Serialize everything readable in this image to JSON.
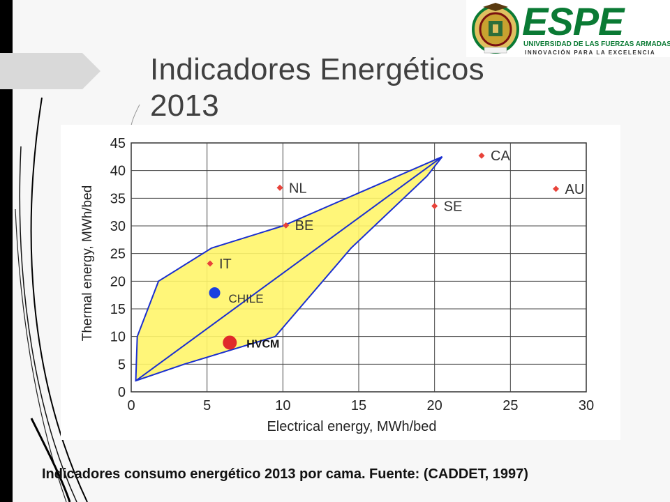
{
  "slide": {
    "title_line1": "Indicadores Energéticos",
    "title_line2": "2013",
    "caption": "Indicadores consumo energético 2013 por cama. Fuente: (CADDET, 1997)"
  },
  "logo": {
    "name": "ESPE",
    "subtitle": "UNIVERSIDAD DE LAS FUERZAS ARMADAS",
    "tagline": "INNOVACIÓN PARA LA EXCELENCIA",
    "brand_color": "#0a7a34"
  },
  "chart_data": {
    "type": "scatter",
    "xlabel": "Electrical energy, MWh/bed",
    "ylabel": "Thermal energy, MWh/bed",
    "xlim": [
      0,
      30
    ],
    "ylim": [
      0,
      45
    ],
    "xticks": [
      0,
      5,
      10,
      15,
      20,
      25,
      30
    ],
    "yticks": [
      0,
      5,
      10,
      15,
      20,
      25,
      30,
      35,
      40,
      45
    ],
    "grid": true,
    "points": [
      {
        "label": "CA",
        "x": 23.1,
        "y": 42.7,
        "color": "#e8433a",
        "marker": "diamond"
      },
      {
        "label": "AU",
        "x": 28.0,
        "y": 36.7,
        "color": "#e8433a",
        "marker": "diamond"
      },
      {
        "label": "NL",
        "x": 9.8,
        "y": 36.9,
        "color": "#e8433a",
        "marker": "diamond"
      },
      {
        "label": "SE",
        "x": 20.0,
        "y": 33.6,
        "color": "#e8433a",
        "marker": "diamond"
      },
      {
        "label": "BE",
        "x": 10.2,
        "y": 30.1,
        "color": "#e8433a",
        "marker": "diamond"
      },
      {
        "label": "IT",
        "x": 5.2,
        "y": 23.2,
        "color": "#e8433a",
        "marker": "diamond"
      },
      {
        "label": "CHILE",
        "x": 5.5,
        "y": 17.9,
        "color": "#1a3fe0",
        "marker": "circle"
      },
      {
        "label": "HVCM",
        "x": 6.5,
        "y": 8.9,
        "color": "#e02a2a",
        "marker": "big-circle"
      }
    ],
    "region": {
      "fill": "#fff56a",
      "stroke": "#1a2fd0",
      "boundary": [
        [
          0.3,
          2
        ],
        [
          0.4,
          10
        ],
        [
          1.8,
          20
        ],
        [
          5.3,
          26
        ],
        [
          10,
          30
        ],
        [
          20.5,
          42.5
        ],
        [
          19.5,
          39
        ],
        [
          14.5,
          26
        ],
        [
          9.5,
          10
        ],
        [
          3.5,
          5
        ],
        [
          0.3,
          2
        ]
      ],
      "diagonal": [
        [
          0.3,
          2
        ],
        [
          20.5,
          42.5
        ]
      ]
    }
  }
}
